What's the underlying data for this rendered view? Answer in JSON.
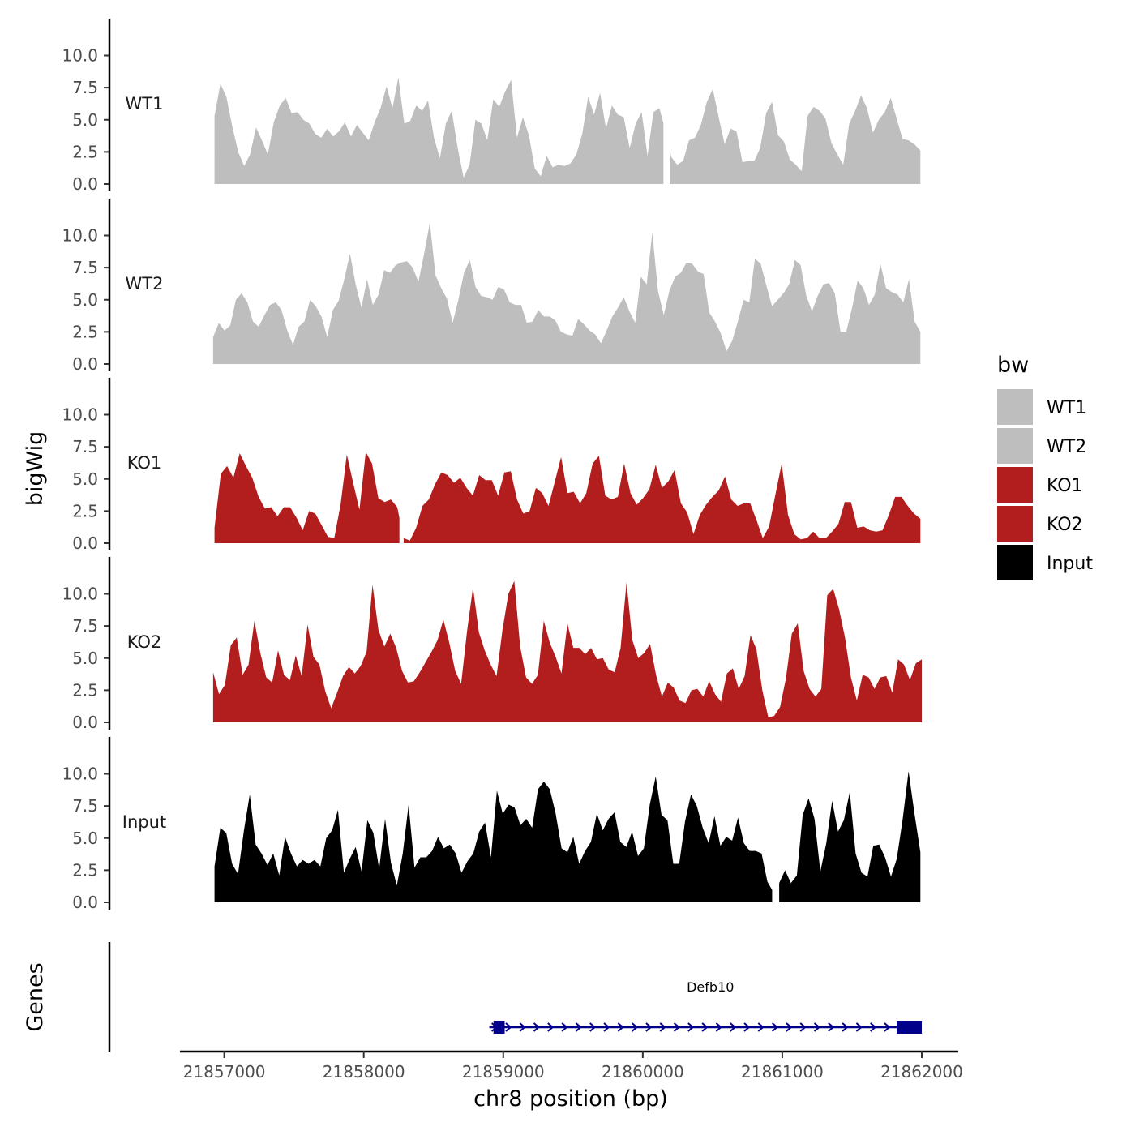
{
  "chart_data": {
    "type": "area",
    "title": "",
    "xlabel": "chr8 position (bp)",
    "ylabel": "bigWig",
    "genes_label": "Genes",
    "xlim": [
      21856700,
      21862250
    ],
    "ylim": [
      0,
      12.5
    ],
    "x_ticks": [
      21857000,
      21858000,
      21859000,
      21860000,
      21861000,
      21862000
    ],
    "x_tick_labels": [
      "21857000",
      "21858000",
      "21859000",
      "21860000",
      "21861000",
      "21862000"
    ],
    "y_ticks": [
      0,
      2.5,
      5,
      7.5,
      10
    ],
    "y_tick_labels": [
      "0.0",
      "2.5",
      "5.0",
      "7.5",
      "10.0"
    ],
    "legend": {
      "title": "bw",
      "position": "right",
      "entries": [
        {
          "label": "WT1",
          "color": "#bebebe"
        },
        {
          "label": "WT2",
          "color": "#bebebe"
        },
        {
          "label": "KO1",
          "color": "#b21e1e"
        },
        {
          "label": "KO2",
          "color": "#b21e1e"
        },
        {
          "label": "Input",
          "color": "#000000"
        }
      ]
    },
    "series": [
      {
        "name": "WT1",
        "color": "#bebebe",
        "x_start": 21856930,
        "x_end": 21861990,
        "values": [
          5.3,
          7.8,
          6.8,
          4.5,
          2.5,
          1.4,
          2.3,
          4.4,
          3.4,
          2.3,
          4.8,
          6.1,
          6.7,
          5.5,
          5.6,
          5.0,
          4.7,
          3.9,
          3.6,
          4.3,
          3.7,
          4.1,
          4.8,
          3.7,
          4.6,
          4.0,
          3.4,
          4.8,
          5.9,
          7.6,
          5.9,
          8.3,
          4.7,
          4.9,
          6.1,
          5.7,
          6.5,
          3.6,
          2.0,
          4.7,
          5.7,
          2.8,
          0.5,
          1.5,
          5.0,
          4.7,
          3.4,
          6.6,
          6.0,
          7.2,
          8.1,
          3.6,
          5.2,
          3.8,
          1.2,
          0.6,
          2.2,
          1.3,
          1.5,
          1.4,
          1.6,
          2.3,
          3.9,
          6.8,
          5.4,
          7.1,
          4.3,
          6.1,
          5.4,
          5.2,
          2.8,
          4.7,
          5.6,
          2.2,
          5.6,
          5.9,
          4.2,
          2.1,
          1.5,
          1.8,
          3.4,
          3.6,
          4.6,
          6.4,
          7.4,
          5.2,
          3.1,
          4.3,
          4.1,
          1.7,
          1.8,
          1.8,
          2.8,
          5.5,
          6.4,
          3.8,
          3.3,
          1.9,
          1.5,
          1.0,
          5.3,
          6.0,
          5.7,
          5.1,
          3.2,
          2.3,
          1.5,
          4.7,
          5.7,
          6.9,
          5.9,
          4.0,
          5.0,
          5.6,
          6.7,
          5.1,
          3.5,
          3.4,
          3.1,
          2.6
        ],
        "gaps": [
          [
            0.636,
            0.645
          ]
        ]
      },
      {
        "name": "WT2",
        "color": "#bebebe",
        "x_start": 21856920,
        "x_end": 21861990,
        "values": [
          2.1,
          3.2,
          2.6,
          3.0,
          5.0,
          5.5,
          4.8,
          3.3,
          2.9,
          3.8,
          4.6,
          4.8,
          4.2,
          2.6,
          1.5,
          2.9,
          3.3,
          5.0,
          4.5,
          3.7,
          2.1,
          4.2,
          4.9,
          6.6,
          8.6,
          6.2,
          4.4,
          6.6,
          4.6,
          5.4,
          7.3,
          7.1,
          7.7,
          7.9,
          8.0,
          7.5,
          6.4,
          8.6,
          11.0,
          6.9,
          5.9,
          5.1,
          3.2,
          5.0,
          7.1,
          8.1,
          6.0,
          5.3,
          5.2,
          5.0,
          6.0,
          5.8,
          4.8,
          4.6,
          4.6,
          3.2,
          3.3,
          4.2,
          3.7,
          3.7,
          3.4,
          2.5,
          2.3,
          2.2,
          3.5,
          3.1,
          2.6,
          2.3,
          1.6,
          2.6,
          3.7,
          4.4,
          5.2,
          4.1,
          3.2,
          6.8,
          6.2,
          10.2,
          5.7,
          3.8,
          5.7,
          6.8,
          7.1,
          7.9,
          7.8,
          7.2,
          7.0,
          4.0,
          3.3,
          2.4,
          1.0,
          1.8,
          3.3,
          5.0,
          4.8,
          8.2,
          7.8,
          6.1,
          4.5,
          5.0,
          5.5,
          6.2,
          8.1,
          7.7,
          5.3,
          4.1,
          5.3,
          6.2,
          6.3,
          5.5,
          2.5,
          2.5,
          4.3,
          6.5,
          5.9,
          4.6,
          5.4,
          7.8,
          5.9,
          5.6,
          5.4,
          4.8,
          6.6,
          3.3,
          2.5
        ],
        "gaps": []
      },
      {
        "name": "KO1",
        "color": "#b21e1e",
        "x_start": 21856930,
        "x_end": 21861990,
        "values": [
          1.2,
          5.4,
          6.0,
          5.1,
          7.0,
          6.0,
          5.1,
          3.6,
          2.7,
          2.8,
          2.1,
          2.8,
          2.8,
          2.0,
          1.0,
          2.5,
          2.3,
          1.4,
          0.5,
          0.4,
          3.0,
          6.9,
          4.7,
          2.6,
          7.1,
          6.2,
          3.5,
          3.2,
          3.4,
          2.8,
          0.4,
          0.2,
          1.2,
          2.9,
          3.4,
          4.6,
          5.5,
          5.3,
          4.7,
          5.1,
          4.3,
          3.7,
          5.3,
          4.9,
          4.9,
          3.7,
          5.5,
          5.6,
          3.4,
          2.3,
          2.5,
          4.3,
          3.9,
          2.9,
          4.8,
          6.7,
          3.9,
          4.0,
          3.1,
          3.9,
          6.2,
          6.8,
          3.7,
          3.4,
          3.6,
          6.2,
          3.9,
          3.0,
          3.5,
          4.2,
          6.1,
          4.3,
          4.8,
          5.7,
          3.1,
          2.4,
          0.7,
          2.2,
          3.0,
          3.6,
          4.1,
          5.2,
          3.4,
          2.9,
          3.1,
          3.1,
          1.8,
          0.4,
          1.3,
          3.8,
          6.2,
          2.2,
          0.7,
          0.3,
          0.4,
          0.9,
          0.4,
          0.4,
          0.9,
          1.5,
          3.2,
          3.2,
          1.2,
          1.3,
          1.0,
          0.9,
          1.0,
          2.2,
          3.6,
          3.6,
          2.9,
          2.3,
          1.9
        ],
        "gaps": [
          [
            0.262,
            0.268
          ]
        ]
      },
      {
        "name": "KO2",
        "color": "#b21e1e",
        "x_start": 21856920,
        "x_end": 21862000,
        "values": [
          3.9,
          2.2,
          2.9,
          6.0,
          6.6,
          3.7,
          4.5,
          7.9,
          5.4,
          3.5,
          3.1,
          5.6,
          3.7,
          3.3,
          5.2,
          3.6,
          7.6,
          5.1,
          4.5,
          2.4,
          1.1,
          2.3,
          3.6,
          4.3,
          3.8,
          4.4,
          5.5,
          10.7,
          7.2,
          5.9,
          6.9,
          5.8,
          4.0,
          3.1,
          3.2,
          3.9,
          4.7,
          5.5,
          6.4,
          8.0,
          6.2,
          4.0,
          3.0,
          7.1,
          10.5,
          7.0,
          5.6,
          4.5,
          3.6,
          7.2,
          10.0,
          11.0,
          5.9,
          3.5,
          3.0,
          3.7,
          7.9,
          6.2,
          5.1,
          3.8,
          7.7,
          5.8,
          5.8,
          5.3,
          5.8,
          4.9,
          5.0,
          4.1,
          3.9,
          5.8,
          10.9,
          6.4,
          5.0,
          5.4,
          6.1,
          3.7,
          2.0,
          3.1,
          2.7,
          1.7,
          1.5,
          2.5,
          2.6,
          2.0,
          3.2,
          2.2,
          1.6,
          3.8,
          4.2,
          2.6,
          3.6,
          6.8,
          5.7,
          2.5,
          0.4,
          0.5,
          1.2,
          3.4,
          6.9,
          7.7,
          4.0,
          2.6,
          2.0,
          2.6,
          9.9,
          10.4,
          8.8,
          6.6,
          3.5,
          1.7,
          3.7,
          3.5,
          2.6,
          3.5,
          3.6,
          2.3,
          4.9,
          4.5,
          3.3,
          4.6,
          4.9
        ],
        "gaps": []
      },
      {
        "name": "Input",
        "color": "#000000",
        "x_start": 21856930,
        "x_end": 21861990,
        "values": [
          2.8,
          5.8,
          5.4,
          3.0,
          2.2,
          5.6,
          8.4,
          4.5,
          3.8,
          2.9,
          3.8,
          2.1,
          5.1,
          3.8,
          2.8,
          3.3,
          3.0,
          3.3,
          2.8,
          5.0,
          5.6,
          7.2,
          2.3,
          3.4,
          4.3,
          2.4,
          6.4,
          5.4,
          2.6,
          6.5,
          3.1,
          1.3,
          3.8,
          7.6,
          2.7,
          3.5,
          3.5,
          4.0,
          5.1,
          4.2,
          4.5,
          3.8,
          2.3,
          3.2,
          3.8,
          5.5,
          6.2,
          3.5,
          8.7,
          6.9,
          7.6,
          7.4,
          6.0,
          6.5,
          5.8,
          8.8,
          9.4,
          8.8,
          6.9,
          4.2,
          3.9,
          5.1,
          3.0,
          4.0,
          4.7,
          6.9,
          5.6,
          6.5,
          7.0,
          4.7,
          4.3,
          5.5,
          3.6,
          4.2,
          7.6,
          9.8,
          6.8,
          6.4,
          3.0,
          3.0,
          6.3,
          8.4,
          7.5,
          5.8,
          4.6,
          6.7,
          4.4,
          5.1,
          4.8,
          6.6,
          4.6,
          4.0,
          4.0,
          3.8,
          1.6,
          0.8,
          1.5,
          2.5,
          1.5,
          2.1,
          6.8,
          8.1,
          6.5,
          2.4,
          4.6,
          7.9,
          5.5,
          6.4,
          8.6,
          3.8,
          2.3,
          2.0,
          4.4,
          4.5,
          3.5,
          2.0,
          3.4,
          6.5,
          10.2,
          6.9,
          3.9
        ],
        "gaps": [
          [
            0.79,
            0.8
          ]
        ]
      }
    ],
    "genes": [
      {
        "name": "Defb10",
        "color": "#00008b",
        "start": 21858900,
        "end": 21862000,
        "strand": "+",
        "exons": [
          [
            21858930,
            21859010
          ],
          [
            21861820,
            21862000
          ]
        ]
      }
    ]
  }
}
